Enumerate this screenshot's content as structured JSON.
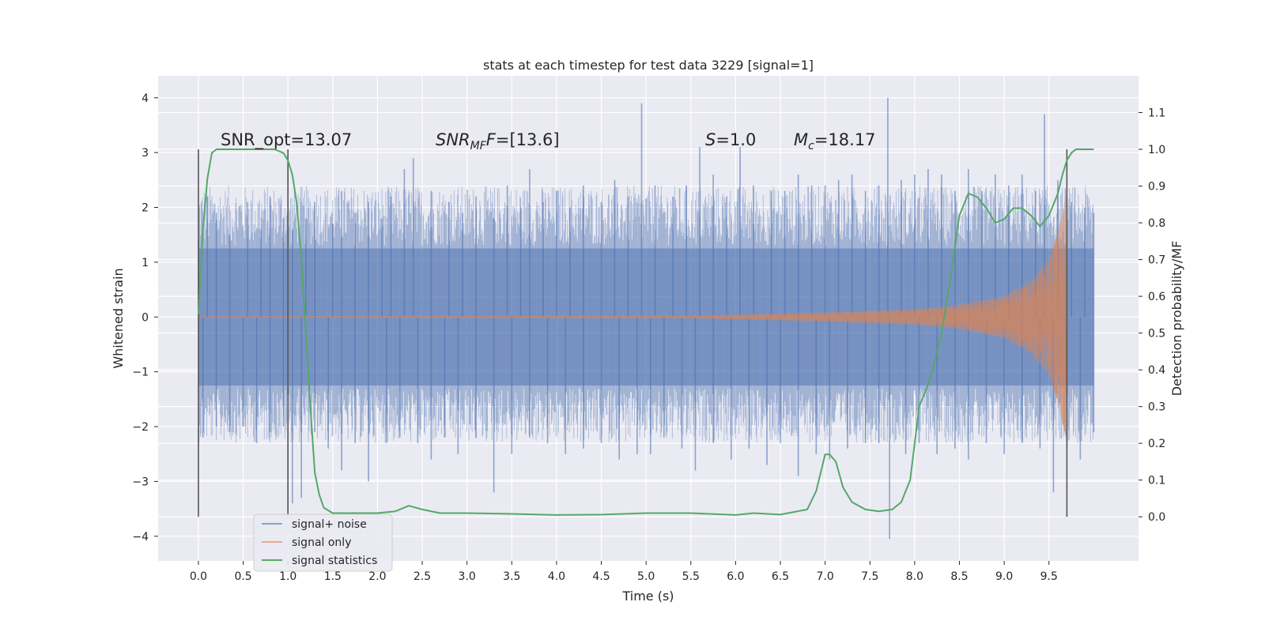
{
  "chart_data": {
    "type": "line",
    "title": "stats at each timestep for test data 3229 [signal=1]",
    "xlabel": "Time (s)",
    "ylabel": "Whitened strain",
    "y2label": "Detection probability/MF",
    "xlim": [
      -0.45,
      10.5
    ],
    "ylim": [
      -4.45,
      4.4
    ],
    "y2lim": [
      -0.12,
      1.2
    ],
    "x_ticks": [
      0.0,
      0.5,
      1.0,
      1.5,
      2.0,
      2.5,
      3.0,
      3.5,
      4.0,
      4.5,
      5.0,
      5.5,
      6.0,
      6.5,
      7.0,
      7.5,
      8.0,
      8.5,
      9.0,
      9.5
    ],
    "x_tick_labels": [
      "0.0",
      "0.5",
      "1.0",
      "1.5",
      "2.0",
      "2.5",
      "3.0",
      "3.5",
      "4.0",
      "4.5",
      "5.0",
      "5.5",
      "6.0",
      "6.5",
      "7.0",
      "7.5",
      "8.0",
      "8.5",
      "9.0",
      "9.5"
    ],
    "y_ticks": [
      4,
      3,
      2,
      1,
      0,
      -1,
      -2,
      -3,
      -4
    ],
    "y_tick_labels": [
      "4",
      "3",
      "2",
      "1",
      "0",
      "−1",
      "−2",
      "−3",
      "−4"
    ],
    "y2_ticks": [
      1.1,
      1.0,
      0.9,
      0.8,
      0.7,
      0.6,
      0.5,
      0.4,
      0.3,
      0.2,
      0.1,
      0.0
    ],
    "y2_tick_labels": [
      "1.1",
      "1.0",
      "0.9",
      "0.8",
      "0.7",
      "0.6",
      "0.5",
      "0.4",
      "0.3",
      "0.2",
      "0.1",
      "0.0"
    ],
    "grid": true,
    "legend_placement": "lower-left",
    "background": "#eaeaf2",
    "annotations": {
      "snr_opt": "SNR_opt=13.07",
      "snr_mf_prefix": "SNR",
      "snr_mf_sub": "MF",
      "snr_mf_suffix": "=[13.6]",
      "s_prefix": "S",
      "s_suffix": "=1.0",
      "mc_prefix": "M",
      "mc_sub": "c",
      "mc_suffix": "=18.17"
    },
    "vertical_lines": [
      0.0,
      1.0,
      9.7
    ],
    "noise_spike_tops": [
      [
        0.0,
        1.4
      ],
      [
        0.1,
        2.2
      ],
      [
        0.2,
        1.9
      ],
      [
        0.35,
        1.5
      ],
      [
        0.55,
        2.1
      ],
      [
        0.7,
        1.6
      ],
      [
        0.8,
        2.2
      ],
      [
        0.95,
        1.8
      ],
      [
        1.05,
        1.6
      ],
      [
        1.2,
        1.8
      ],
      [
        1.3,
        2.1
      ],
      [
        1.5,
        1.7
      ],
      [
        1.6,
        2.3
      ],
      [
        1.75,
        1.9
      ],
      [
        1.9,
        2.1
      ],
      [
        2.05,
        1.8
      ],
      [
        2.15,
        2.2
      ],
      [
        2.3,
        2.7
      ],
      [
        2.4,
        2.9
      ],
      [
        2.6,
        2.3
      ],
      [
        2.8,
        2.1
      ],
      [
        2.95,
        1.9
      ],
      [
        3.1,
        2.2
      ],
      [
        3.3,
        1.8
      ],
      [
        3.45,
        2.4
      ],
      [
        3.6,
        2.0
      ],
      [
        3.7,
        2.7
      ],
      [
        3.85,
        2.1
      ],
      [
        4.0,
        2.3
      ],
      [
        4.15,
        2.0
      ],
      [
        4.3,
        2.4
      ],
      [
        4.5,
        2.1
      ],
      [
        4.65,
        2.5
      ],
      [
        4.8,
        2.2
      ],
      [
        4.95,
        3.9
      ],
      [
        5.1,
        2.4
      ],
      [
        5.3,
        2.2
      ],
      [
        5.45,
        2.4
      ],
      [
        5.6,
        3.1
      ],
      [
        5.75,
        2.6
      ],
      [
        5.9,
        2.2
      ],
      [
        6.05,
        3.1
      ],
      [
        6.2,
        2.4
      ],
      [
        6.4,
        2.3
      ],
      [
        6.55,
        2.3
      ],
      [
        6.7,
        2.6
      ],
      [
        6.85,
        2.4
      ],
      [
        7.0,
        2.4
      ],
      [
        7.15,
        2.5
      ],
      [
        7.3,
        2.6
      ],
      [
        7.45,
        2.3
      ],
      [
        7.6,
        2.4
      ],
      [
        7.7,
        4.0
      ],
      [
        7.85,
        2.5
      ],
      [
        8.0,
        2.6
      ],
      [
        8.15,
        2.7
      ],
      [
        8.3,
        2.6
      ],
      [
        8.45,
        2.3
      ],
      [
        8.6,
        2.7
      ],
      [
        8.75,
        2.3
      ],
      [
        8.9,
        2.6
      ],
      [
        9.05,
        2.4
      ],
      [
        9.2,
        2.6
      ],
      [
        9.35,
        2.3
      ],
      [
        9.45,
        3.7
      ],
      [
        9.6,
        2.5
      ],
      [
        9.75,
        2.1
      ],
      [
        9.9,
        2.0
      ],
      [
        10.0,
        1.9
      ]
    ],
    "noise_spike_bottoms": [
      [
        0.05,
        -2.2
      ],
      [
        0.2,
        -2.0
      ],
      [
        0.35,
        -2.1
      ],
      [
        0.5,
        -2.0
      ],
      [
        0.65,
        -2.3
      ],
      [
        0.8,
        -2.1
      ],
      [
        0.95,
        -2.0
      ],
      [
        1.05,
        -3.4
      ],
      [
        1.15,
        -3.3
      ],
      [
        1.3,
        -2.1
      ],
      [
        1.45,
        -2.4
      ],
      [
        1.6,
        -2.8
      ],
      [
        1.75,
        -2.3
      ],
      [
        1.9,
        -3.0
      ],
      [
        2.1,
        -2.3
      ],
      [
        2.25,
        -2.2
      ],
      [
        2.45,
        -2.3
      ],
      [
        2.6,
        -2.6
      ],
      [
        2.75,
        -2.2
      ],
      [
        2.9,
        -2.5
      ],
      [
        3.1,
        -2.2
      ],
      [
        3.3,
        -3.2
      ],
      [
        3.5,
        -2.5
      ],
      [
        3.7,
        -2.2
      ],
      [
        3.9,
        -2.3
      ],
      [
        4.1,
        -2.5
      ],
      [
        4.3,
        -2.4
      ],
      [
        4.5,
        -2.3
      ],
      [
        4.7,
        -2.6
      ],
      [
        4.9,
        -2.5
      ],
      [
        5.05,
        -2.5
      ],
      [
        5.2,
        -2.2
      ],
      [
        5.4,
        -2.4
      ],
      [
        5.55,
        -2.8
      ],
      [
        5.75,
        -2.3
      ],
      [
        5.95,
        -2.6
      ],
      [
        6.15,
        -2.4
      ],
      [
        6.35,
        -2.7
      ],
      [
        6.5,
        -2.3
      ],
      [
        6.7,
        -2.9
      ],
      [
        6.9,
        -2.5
      ],
      [
        7.05,
        -2.6
      ],
      [
        7.25,
        -2.4
      ],
      [
        7.45,
        -2.3
      ],
      [
        7.6,
        -2.3
      ],
      [
        7.72,
        -4.05
      ],
      [
        7.9,
        -2.5
      ],
      [
        8.05,
        -2.3
      ],
      [
        8.25,
        -2.5
      ],
      [
        8.45,
        -2.4
      ],
      [
        8.6,
        -2.6
      ],
      [
        8.8,
        -2.3
      ],
      [
        9.0,
        -2.5
      ],
      [
        9.2,
        -2.3
      ],
      [
        9.4,
        -2.4
      ],
      [
        9.55,
        -3.2
      ],
      [
        9.7,
        -2.4
      ],
      [
        9.85,
        -2.6
      ],
      [
        10.0,
        -2.1
      ]
    ],
    "series": [
      {
        "name": "signal+ noise",
        "color": "#4c72b0",
        "axis": "left",
        "band": [
          [
            0.0,
            1.25
          ],
          [
            2.0,
            1.25
          ],
          [
            4.0,
            1.25
          ],
          [
            6.0,
            1.25
          ],
          [
            8.0,
            1.25
          ],
          [
            10.0,
            1.25
          ]
        ]
      },
      {
        "name": "signal only",
        "color": "#dd8452",
        "axis": "left",
        "envelope": [
          [
            0.0,
            0.01
          ],
          [
            5.5,
            0.02
          ],
          [
            6.0,
            0.04
          ],
          [
            7.0,
            0.08
          ],
          [
            8.0,
            0.14
          ],
          [
            8.5,
            0.22
          ],
          [
            9.0,
            0.38
          ],
          [
            9.3,
            0.65
          ],
          [
            9.5,
            1.05
          ],
          [
            9.6,
            1.55
          ],
          [
            9.66,
            2.0
          ],
          [
            9.7,
            2.3
          ]
        ]
      },
      {
        "name": "signal statistics",
        "color": "#55a868",
        "axis": "right",
        "x": [
          0.0,
          0.05,
          0.1,
          0.15,
          0.2,
          0.3,
          0.5,
          0.7,
          0.85,
          0.95,
          1.0,
          1.05,
          1.1,
          1.15,
          1.2,
          1.25,
          1.3,
          1.35,
          1.4,
          1.5,
          1.7,
          2.0,
          2.2,
          2.35,
          2.5,
          2.7,
          3.0,
          3.5,
          4.0,
          4.5,
          5.0,
          5.5,
          6.0,
          6.2,
          6.5,
          6.8,
          6.9,
          7.0,
          7.05,
          7.12,
          7.2,
          7.3,
          7.45,
          7.6,
          7.75,
          7.85,
          7.95,
          8.05,
          8.15,
          8.2,
          8.3,
          8.4,
          8.5,
          8.6,
          8.7,
          8.8,
          8.9,
          9.0,
          9.1,
          9.2,
          9.3,
          9.4,
          9.5,
          9.6,
          9.65,
          9.7,
          9.75,
          9.8,
          9.85,
          9.9,
          10.0
        ],
        "y": [
          0.55,
          0.78,
          0.92,
          0.99,
          1.0,
          1.0,
          1.0,
          1.0,
          1.0,
          0.99,
          0.97,
          0.93,
          0.85,
          0.7,
          0.5,
          0.3,
          0.12,
          0.06,
          0.025,
          0.01,
          0.01,
          0.01,
          0.015,
          0.03,
          0.02,
          0.01,
          0.01,
          0.008,
          0.005,
          0.006,
          0.01,
          0.01,
          0.005,
          0.01,
          0.006,
          0.02,
          0.07,
          0.17,
          0.17,
          0.15,
          0.08,
          0.04,
          0.02,
          0.015,
          0.02,
          0.04,
          0.1,
          0.3,
          0.36,
          0.4,
          0.5,
          0.65,
          0.82,
          0.88,
          0.87,
          0.84,
          0.8,
          0.81,
          0.84,
          0.84,
          0.82,
          0.79,
          0.82,
          0.88,
          0.93,
          0.97,
          0.99,
          1.0,
          1.0,
          1.0,
          1.0
        ]
      }
    ]
  }
}
